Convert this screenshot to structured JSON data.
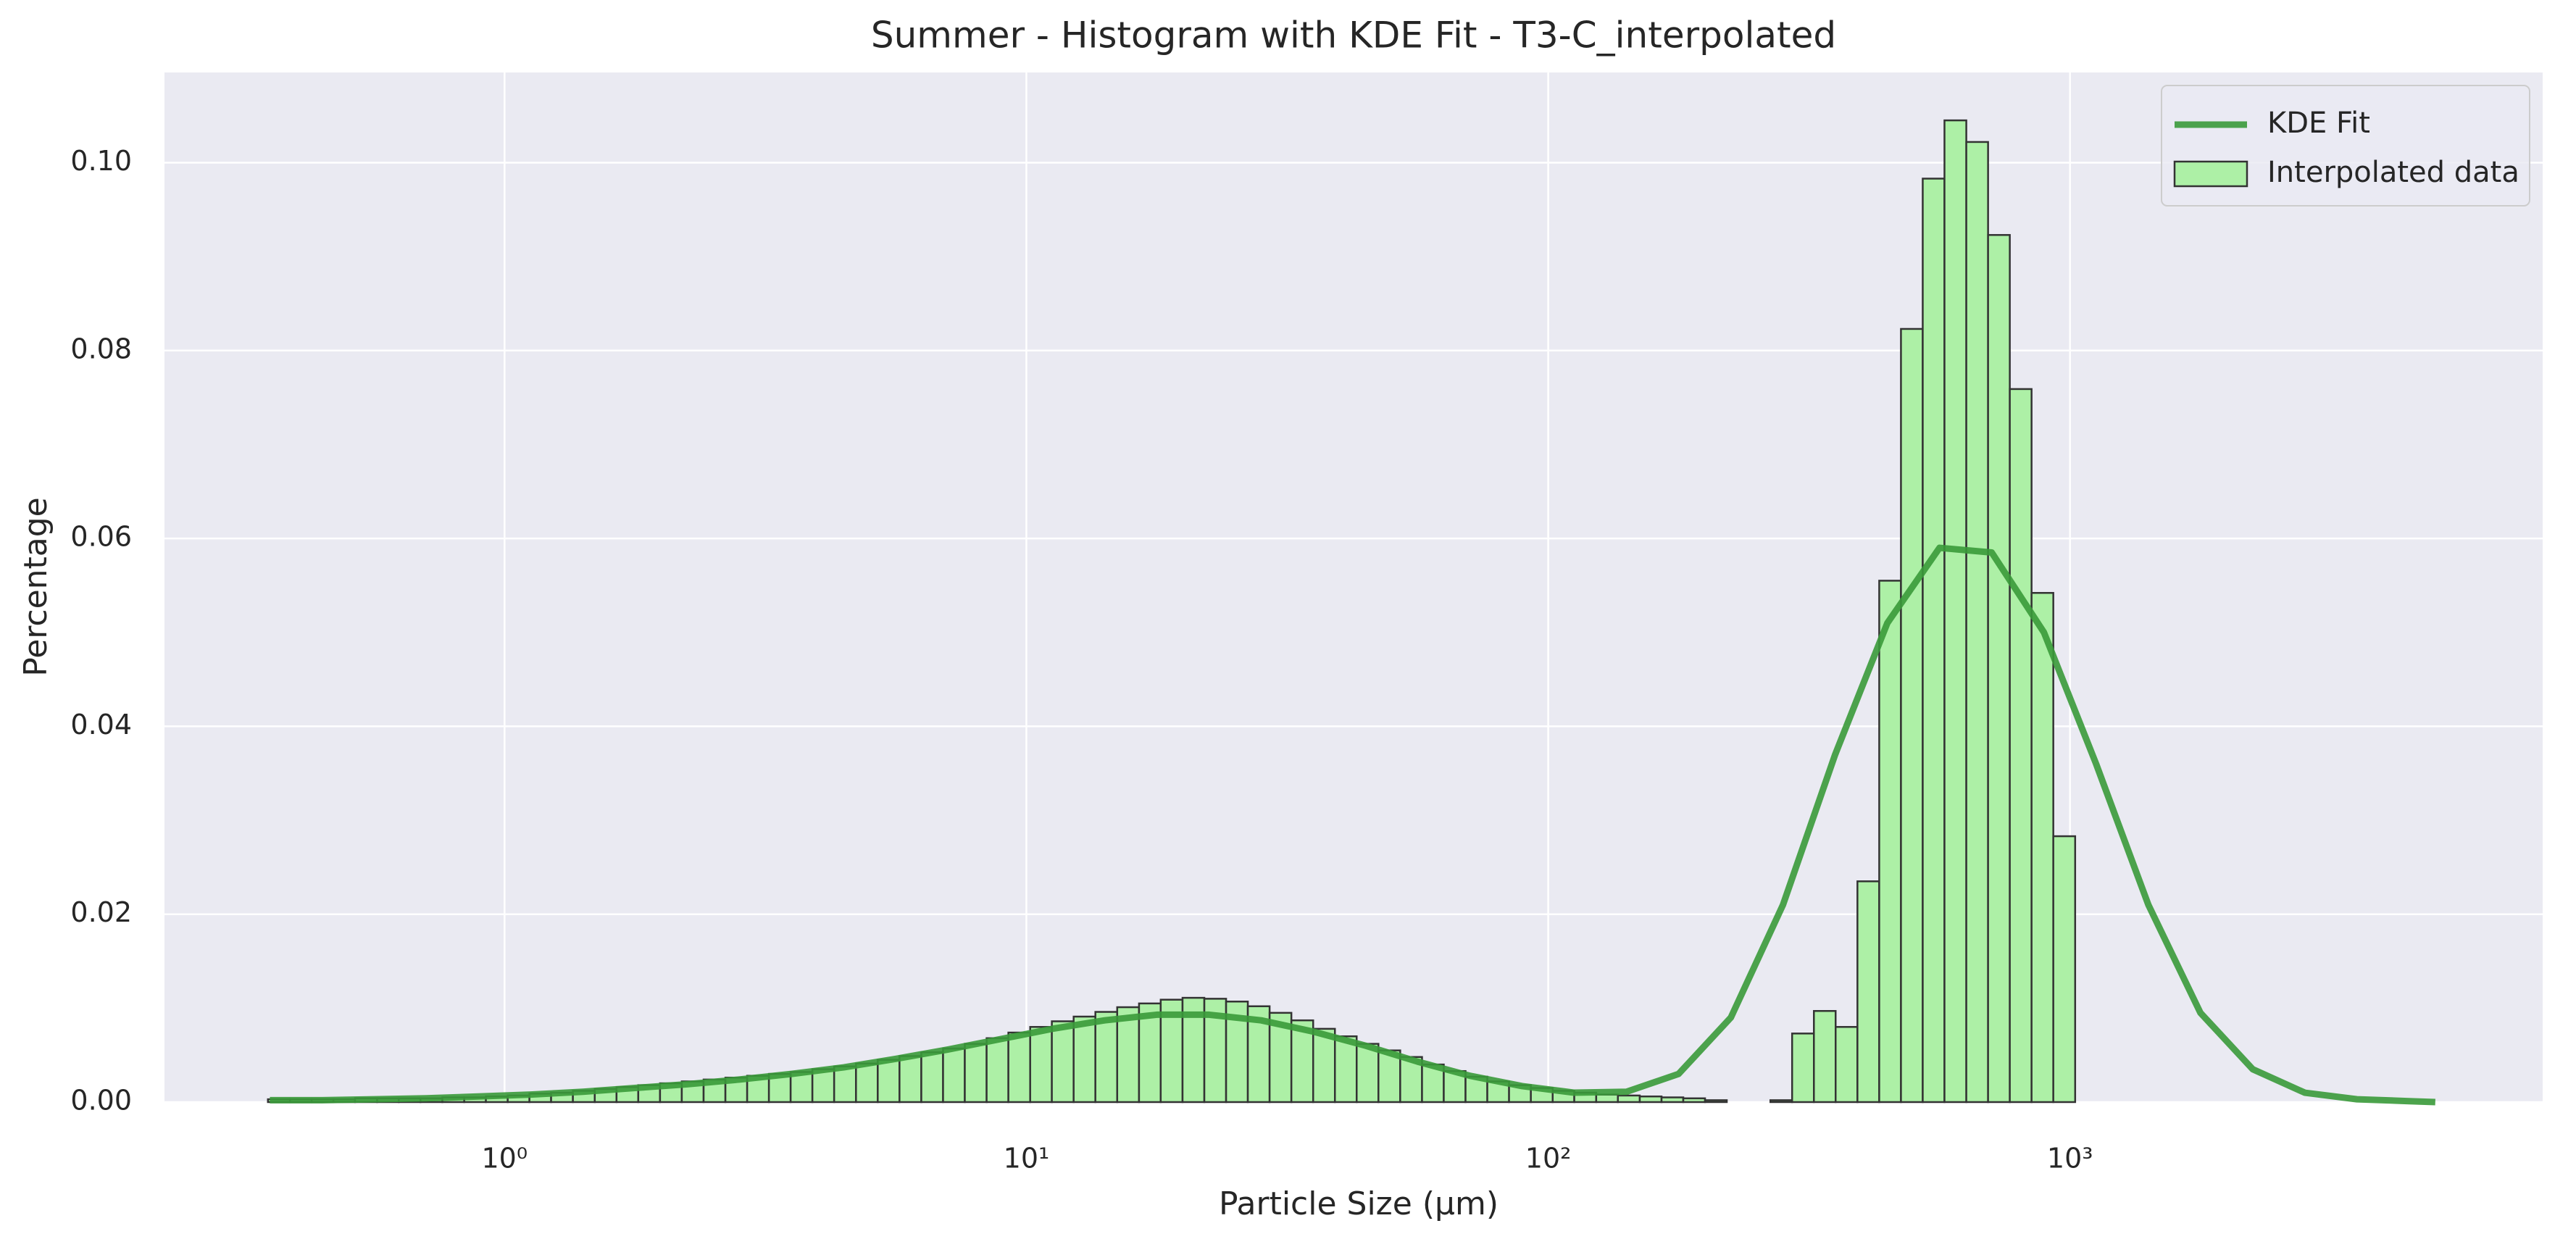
{
  "chart_data": {
    "type": "histogram",
    "title": "Summer - Histogram with KDE Fit - T3-C_interpolated",
    "x_label": "Particle Size (μm)",
    "y_label": "Percentage",
    "xscale": "log",
    "xlim": [
      0.223,
      8050
    ],
    "ylim": [
      0,
      0.1096
    ],
    "xticks": [
      {
        "value": 1,
        "label": "10⁰"
      },
      {
        "value": 10,
        "label": "10¹"
      },
      {
        "value": 100,
        "label": "10²"
      },
      {
        "value": 1000,
        "label": "10³"
      }
    ],
    "yticks": [
      {
        "value": 0,
        "label": "0.00"
      },
      {
        "value": 0.02,
        "label": "0.02"
      },
      {
        "value": 0.04,
        "label": "0.04"
      },
      {
        "value": 0.06,
        "label": "0.06"
      },
      {
        "value": 0.08,
        "label": "0.08"
      },
      {
        "value": 0.1,
        "label": "0.10"
      }
    ],
    "grid": true,
    "legend_position": "upper right",
    "series": [
      {
        "type": "line",
        "name": "KDE Fit",
        "color": "#3a9a3a",
        "x": [
          0.355,
          0.447,
          0.562,
          0.708,
          0.891,
          1.122,
          1.413,
          1.778,
          2.239,
          2.818,
          3.548,
          4.467,
          5.623,
          7.079,
          8.913,
          11.22,
          14.13,
          17.78,
          22.39,
          28.18,
          35.48,
          44.67,
          56.23,
          70.79,
          89.13,
          112.2,
          141.3,
          177.8,
          223.9,
          281.8,
          354.8,
          446.7,
          562.3,
          707.9,
          891.3,
          1122,
          1413,
          1778,
          2239,
          2818,
          3548,
          4467,
          5012
        ],
        "values": [
          0.0002,
          0.0002,
          0.0003,
          0.0004,
          0.0006,
          0.0008,
          0.0011,
          0.0015,
          0.0019,
          0.0024,
          0.003,
          0.0037,
          0.0046,
          0.0056,
          0.0067,
          0.0078,
          0.0087,
          0.0093,
          0.0093,
          0.0087,
          0.0075,
          0.006,
          0.0043,
          0.0028,
          0.0017,
          0.001,
          0.0011,
          0.003,
          0.009,
          0.021,
          0.037,
          0.051,
          0.059,
          0.0585,
          0.05,
          0.036,
          0.021,
          0.0095,
          0.0035,
          0.001,
          0.0003,
          0.0001,
          0
        ]
      },
      {
        "type": "histogram",
        "name": "Interpolated data",
        "color": "#adf0a6",
        "edgecolor": "#333333",
        "bins": [
          0.352,
          0.388,
          0.427,
          0.47,
          0.517,
          0.57,
          0.627,
          0.69,
          0.76,
          0.837,
          0.921,
          1.014,
          1.116,
          1.228,
          1.352,
          1.489,
          1.639,
          1.804,
          1.986,
          2.186,
          2.407,
          2.65,
          2.917,
          3.211,
          3.534,
          3.89,
          4.282,
          4.715,
          5.19,
          5.713,
          6.29,
          6.924,
          7.621,
          8.391,
          9.237,
          10.17,
          11.19,
          12.32,
          13.56,
          14.93,
          16.44,
          18.09,
          19.92,
          21.93,
          24.14,
          26.57,
          29.25,
          32.2,
          35.45,
          39.02,
          42.95,
          47.28,
          52.05,
          57.31,
          63.08,
          69.44,
          76.44,
          84.14,
          92.64,
          102,
          112.2,
          123.6,
          136,
          149.8,
          164.9,
          181.5,
          199.8,
          219.9,
          242.1,
          266.6,
          293.4,
          323,
          355.5,
          391.4,
          430.9,
          474.3,
          522.1,
          574.7,
          632.8,
          696.6,
          766.7,
          844,
          929,
          1023
        ],
        "values": [
          0.0003,
          0.0003,
          0.0003,
          0.0003,
          0.0004,
          0.0004,
          0.0004,
          0.0004,
          0.0005,
          0.0005,
          0.0006,
          0.0007,
          0.0009,
          0.001,
          0.0012,
          0.0014,
          0.0016,
          0.0018,
          0.002,
          0.0022,
          0.0024,
          0.0026,
          0.0028,
          0.003,
          0.0032,
          0.0035,
          0.0038,
          0.0041,
          0.0045,
          0.0049,
          0.0053,
          0.0057,
          0.0062,
          0.0068,
          0.0074,
          0.008,
          0.0086,
          0.0091,
          0.0096,
          0.0101,
          0.0105,
          0.0109,
          0.0111,
          0.011,
          0.0107,
          0.0102,
          0.0095,
          0.0087,
          0.0078,
          0.007,
          0.0062,
          0.0055,
          0.0048,
          0.004,
          0.0033,
          0.0027,
          0.0022,
          0.0018,
          0.0015,
          0.0012,
          0.001,
          0.0008,
          0.0007,
          0.0006,
          0.0005,
          0.0004,
          0.0002,
          0,
          0,
          0.0002,
          0.0073,
          0.0097,
          0.008,
          0.0235,
          0.0555,
          0.0823,
          0.0983,
          0.1045,
          0.1022,
          0.0923,
          0.0759,
          0.0542,
          0.0283
        ]
      }
    ]
  }
}
